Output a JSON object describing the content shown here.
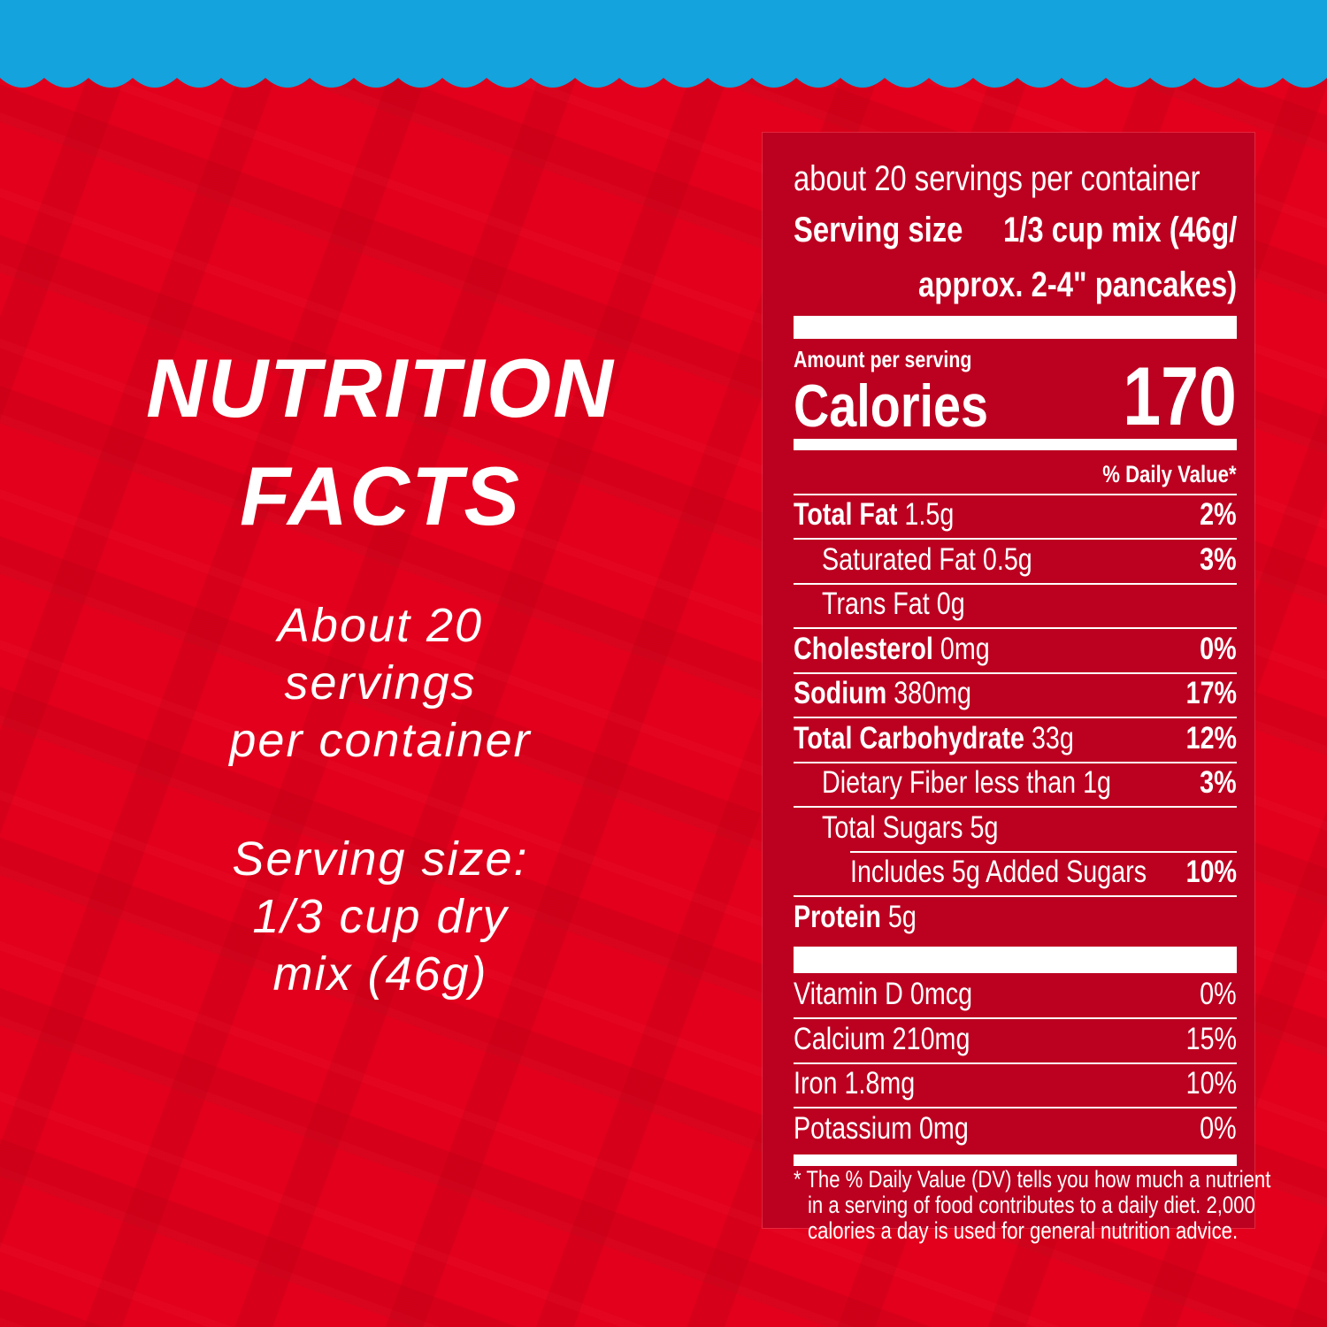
{
  "left": {
    "title": [
      "NUTRITION",
      "FACTS"
    ],
    "servings": [
      "About 20",
      "servings",
      "per container"
    ],
    "serving_size": [
      "Serving size:",
      "1/3 cup dry",
      "mix (46g)"
    ]
  },
  "label": {
    "servings": "about 20 servings per container",
    "serving_size_label": "Serving size",
    "serving_size_value": [
      "1/3 cup mix (46g/",
      "approx. 2-4\" pancakes)"
    ],
    "amount_per_serving": "Amount per serving",
    "calories_label": "Calories",
    "calories": 170,
    "daily_value_header": "% Daily Value*",
    "nutrients": [
      {
        "name": "Total Fat",
        "amount": "1.5g",
        "dv": "2%",
        "children": [
          {
            "name": "Saturated Fat",
            "amount": "0.5g",
            "dv": "3%"
          },
          {
            "name": "Trans Fat",
            "amount": "0g"
          }
        ]
      },
      {
        "name": "Cholesterol",
        "amount": "0mg",
        "dv": "0%"
      },
      {
        "name": "Sodium",
        "amount": "380mg",
        "dv": "17%"
      },
      {
        "name": "Total Carbohydrate",
        "amount": "33g",
        "dv": "12%",
        "children": [
          {
            "name": "Dietary Fiber",
            "amount": "less than 1g",
            "dv": "3%"
          },
          {
            "name": "Total Sugars",
            "amount": "5g",
            "children": [
              {
                "name": "Includes 5g Added Sugars",
                "dv": "10%"
              }
            ]
          }
        ]
      },
      {
        "name": "Protein",
        "amount": "5g"
      }
    ],
    "minerals": [
      {
        "name": "Vitamin D",
        "amount": "0mcg",
        "dv": "0%"
      },
      {
        "name": "Calcium",
        "amount": "210mg",
        "dv": "15%"
      },
      {
        "name": "Iron",
        "amount": "1.8mg",
        "dv": "10%"
      },
      {
        "name": "Potassium",
        "amount": "0mg",
        "dv": "0%"
      }
    ],
    "footnote": [
      "* The % Daily Value (DV) tells you how much a nutrient",
      "in a serving of food contributes to a daily diet. 2,000",
      "calories a day is used for general nutrition advice."
    ]
  }
}
